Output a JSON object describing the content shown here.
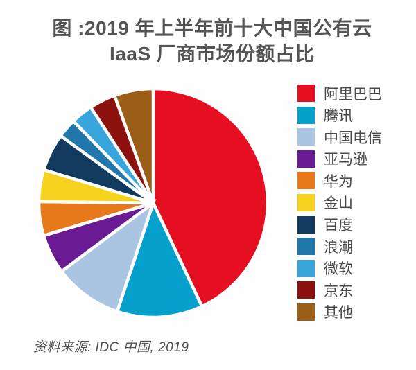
{
  "figure": {
    "title_line1": "图 :2019 年上半年前十大中国公有云",
    "title_line2": "IaaS 厂商市场份额占比",
    "source_note": "资料来源: IDC 中国, 2019"
  },
  "chart_data": {
    "type": "pie",
    "title": "2019 年上半年前十大中国公有云 IaaS 厂商市场份额占比",
    "source": "IDC 中国, 2019",
    "start_angle_deg": 0,
    "direction": "clockwise",
    "legend_position": "right",
    "values_unit": "percent_share_estimated_from_slice_angles",
    "data_labels_shown": false,
    "categories": [
      "阿里巴巴",
      "腾讯",
      "中国电信",
      "亚马逊",
      "华为",
      "金山",
      "百度",
      "浪潮",
      "微软",
      "京东",
      "其他"
    ],
    "values": [
      43.0,
      12.1,
      9.7,
      5.6,
      4.8,
      4.5,
      5.3,
      2.7,
      3.1,
      3.7,
      5.5
    ],
    "colors": [
      "#e60f21",
      "#06a0cc",
      "#a9c5e2",
      "#6a1b93",
      "#e8791a",
      "#f6d21c",
      "#123a5f",
      "#2077ab",
      "#38a5dc",
      "#8d110e",
      "#9a5e18"
    ],
    "slice_gap_color": "#ffffff"
  }
}
